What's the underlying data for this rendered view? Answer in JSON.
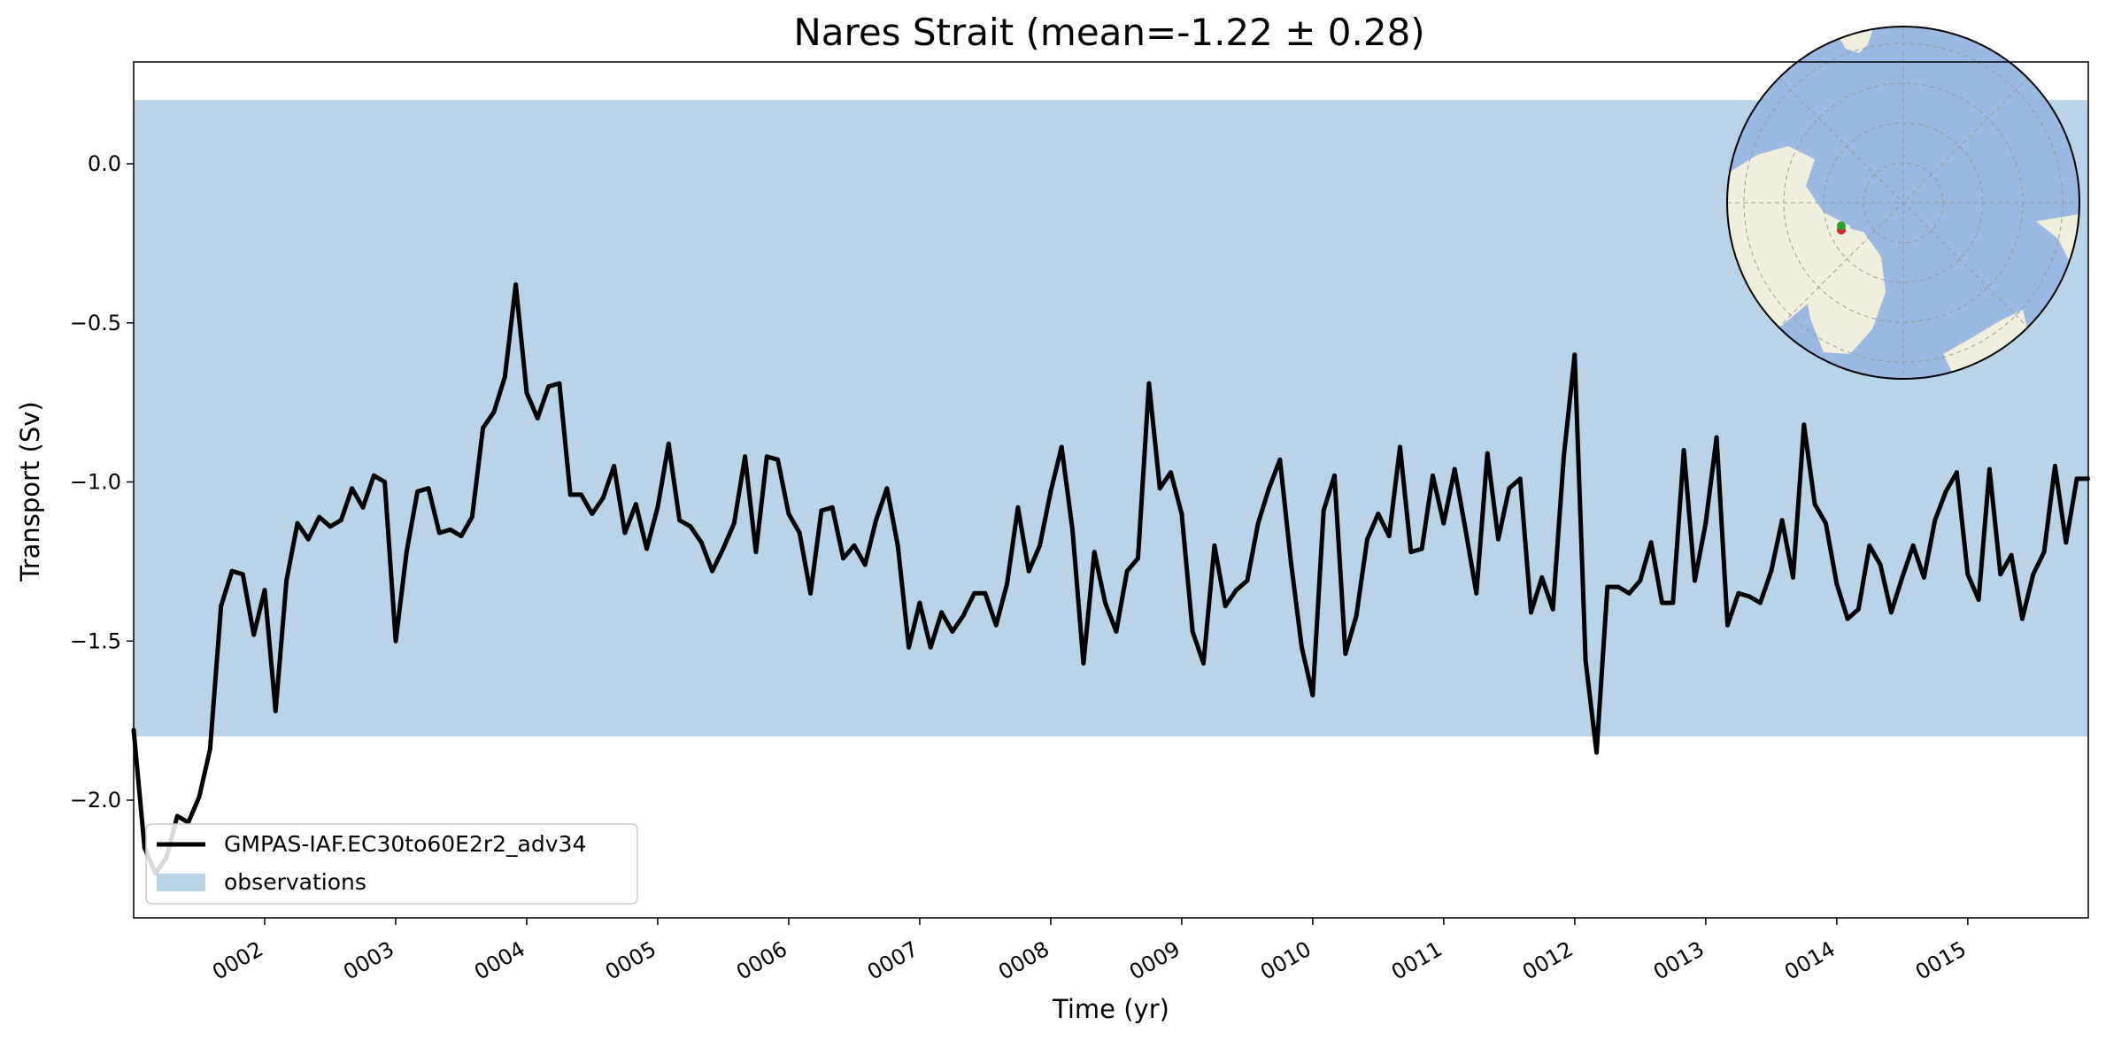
{
  "chart_data": {
    "type": "line",
    "title": "Nares Strait (mean=-1.22 ± 0.28)",
    "xlabel": "Time (yr)",
    "ylabel": "Transport (Sv)",
    "xlim": [
      1.0,
      15.92
    ],
    "ylim": [
      -2.37,
      0.32
    ],
    "x_ticks": [
      2,
      3,
      4,
      5,
      6,
      7,
      8,
      9,
      10,
      11,
      12,
      13,
      14,
      15
    ],
    "x_tick_labels": [
      "0002",
      "0003",
      "0004",
      "0005",
      "0006",
      "0007",
      "0008",
      "0009",
      "0010",
      "0011",
      "0012",
      "0013",
      "0014",
      "0015"
    ],
    "y_ticks": [
      0.0,
      -0.5,
      -1.0,
      -1.5,
      -2.0
    ],
    "y_tick_labels": [
      "0.0",
      "−0.5",
      "−1.0",
      "−1.5",
      "−2.0"
    ],
    "grid": false,
    "legend_placement": "lower-left",
    "observations_band": {
      "name": "observations",
      "y_min": -1.8,
      "y_max": 0.2,
      "color": "#bad4e7"
    },
    "series": [
      {
        "name": "GMPAS-IAF.EC30to60E2r2_adv34",
        "color": "#000000",
        "x_start": 1.0,
        "x_step": 0.08333,
        "values": [
          -1.78,
          -2.15,
          -2.23,
          -2.18,
          -2.05,
          -2.07,
          -1.99,
          -1.84,
          -1.39,
          -1.28,
          -1.29,
          -1.48,
          -1.34,
          -1.72,
          -1.31,
          -1.13,
          -1.18,
          -1.11,
          -1.14,
          -1.12,
          -1.02,
          -1.08,
          -0.98,
          -1.0,
          -1.5,
          -1.22,
          -1.03,
          -1.02,
          -1.16,
          -1.15,
          -1.17,
          -1.11,
          -0.83,
          -0.78,
          -0.67,
          -0.38,
          -0.72,
          -0.8,
          -0.7,
          -0.69,
          -1.04,
          -1.04,
          -1.1,
          -1.05,
          -0.95,
          -1.16,
          -1.07,
          -1.21,
          -1.08,
          -0.88,
          -1.12,
          -1.14,
          -1.19,
          -1.28,
          -1.21,
          -1.13,
          -0.92,
          -1.22,
          -0.92,
          -0.93,
          -1.1,
          -1.16,
          -1.35,
          -1.09,
          -1.08,
          -1.24,
          -1.2,
          -1.26,
          -1.12,
          -1.02,
          -1.2,
          -1.52,
          -1.38,
          -1.52,
          -1.41,
          -1.47,
          -1.42,
          -1.35,
          -1.35,
          -1.45,
          -1.32,
          -1.08,
          -1.28,
          -1.2,
          -1.03,
          -0.89,
          -1.15,
          -1.57,
          -1.22,
          -1.38,
          -1.47,
          -1.28,
          -1.24,
          -0.69,
          -1.02,
          -0.97,
          -1.1,
          -1.47,
          -1.57,
          -1.2,
          -1.39,
          -1.34,
          -1.31,
          -1.13,
          -1.02,
          -0.93,
          -1.25,
          -1.52,
          -1.67,
          -1.09,
          -0.98,
          -1.54,
          -1.42,
          -1.18,
          -1.1,
          -1.17,
          -0.89,
          -1.22,
          -1.21,
          -0.98,
          -1.13,
          -0.96,
          -1.15,
          -1.35,
          -0.91,
          -1.18,
          -1.02,
          -0.99,
          -1.41,
          -1.3,
          -1.4,
          -0.92,
          -0.6,
          -1.56,
          -1.85,
          -1.33,
          -1.33,
          -1.35,
          -1.31,
          -1.19,
          -1.38,
          -1.38,
          -0.9,
          -1.31,
          -1.13,
          -0.86,
          -1.45,
          -1.35,
          -1.36,
          -1.38,
          -1.28,
          -1.12,
          -1.3,
          -0.82,
          -1.07,
          -1.13,
          -1.32,
          -1.43,
          -1.4,
          -1.2,
          -1.26,
          -1.41,
          -1.3,
          -1.2,
          -1.3,
          -1.12,
          -1.03,
          -0.97,
          -1.29,
          -1.37,
          -0.96,
          -1.29,
          -1.23,
          -1.43,
          -1.29,
          -1.22,
          -0.95,
          -1.19,
          -0.99,
          -0.99
        ]
      }
    ],
    "inset_map": {
      "projection": "north-polar-stereographic",
      "ocean_color": "#9bb8e3",
      "land_color": "#f0efdc",
      "markers": [
        {
          "name": "section-start",
          "color": "#2ca02c"
        },
        {
          "name": "section-end",
          "color": "#d62728"
        }
      ]
    }
  }
}
